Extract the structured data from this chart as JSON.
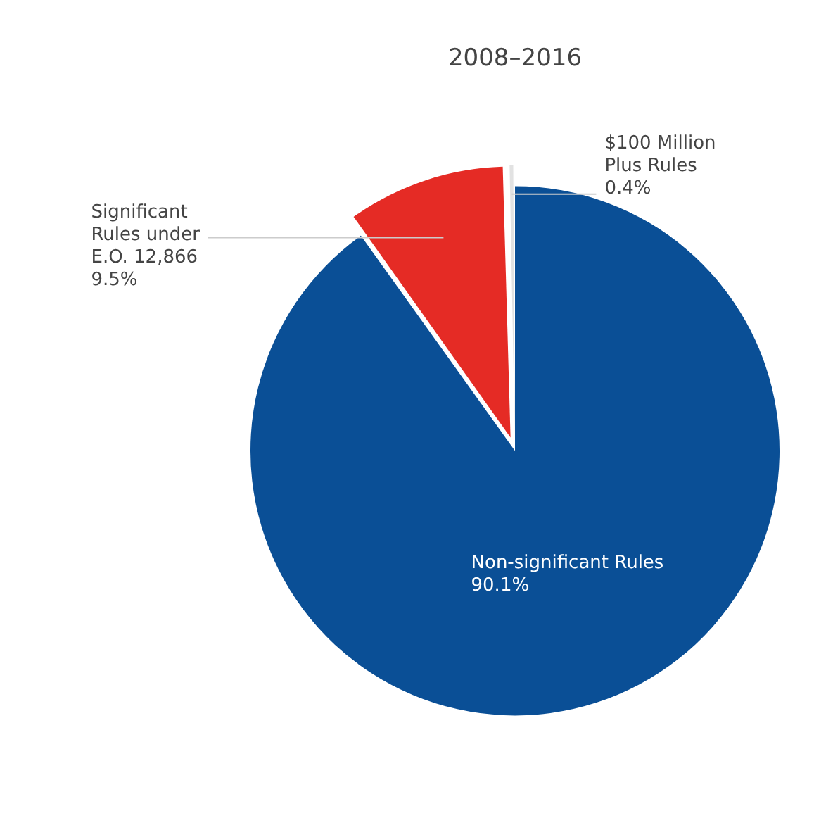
{
  "chart_data": {
    "type": "pie",
    "title": "2008–2016",
    "categories": [
      "Non-significant Rules",
      "Significant Rules under E.O. 12,866",
      "$100 Million Plus Rules"
    ],
    "values": [
      90.1,
      9.5,
      0.4
    ],
    "colors": [
      "#0a4f96",
      "#e52b25",
      "#e2e2e2"
    ],
    "value_labels": [
      "90.1%",
      "9.5%",
      "0.4%"
    ],
    "legend": false
  }
}
